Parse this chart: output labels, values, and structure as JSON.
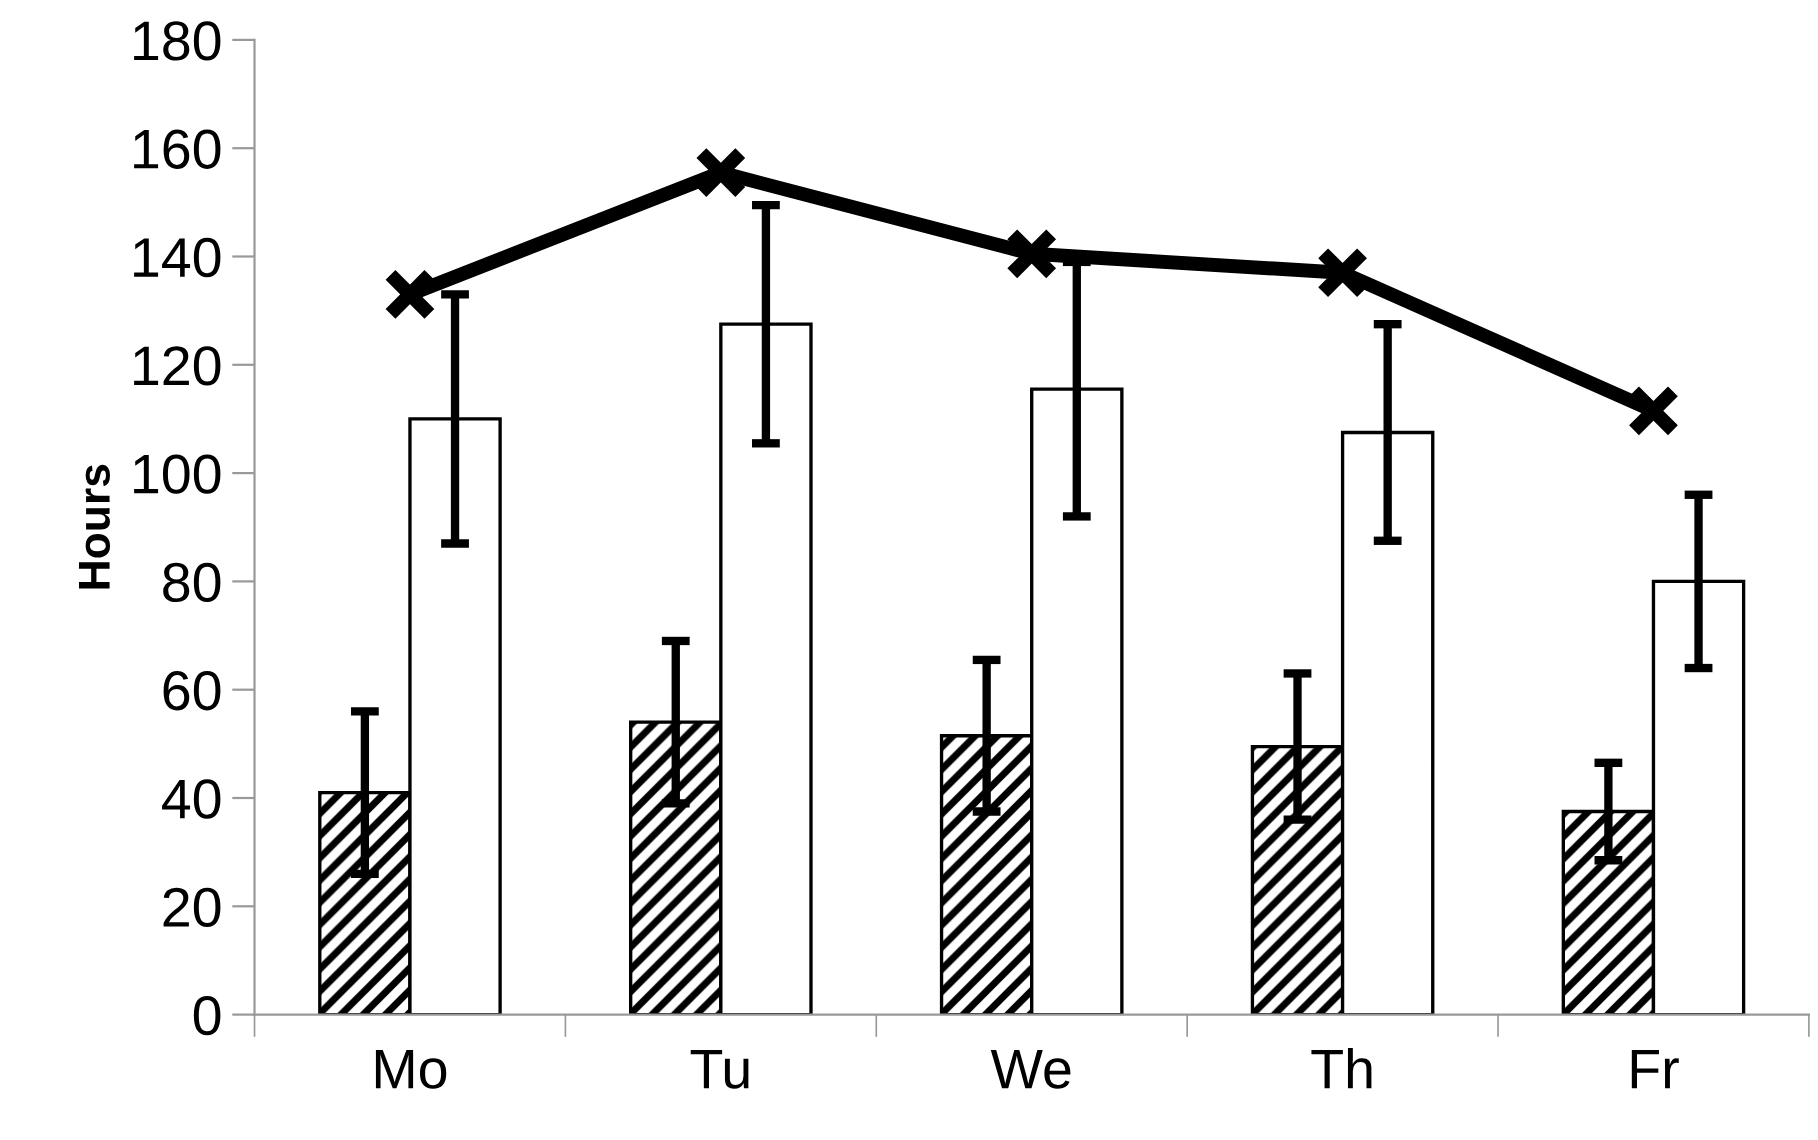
{
  "chart_data": {
    "type": "bar",
    "ylabel": "Hours",
    "categories": [
      "Mo",
      "Tu",
      "We",
      "Th",
      "Fr"
    ],
    "series": [
      {
        "color": "#000000",
        "values": [
          41,
          54,
          51.5,
          49.5,
          37.5
        ],
        "errors": [
          15,
          15,
          14,
          13.5,
          9
        ]
      },
      {
        "color": "#ffffff",
        "values": [
          110,
          127.5,
          115.5,
          107.5,
          80
        ],
        "errors": [
          23,
          22,
          23.5,
          20,
          16
        ]
      },
      {
        "type": "line",
        "color": "#000000",
        "values": [
          133,
          155.5,
          140.5,
          137,
          111.5
        ],
        "marker": "cross",
        "line_style": "solid"
      }
    ],
    "ylim": [
      0,
      180
    ],
    "yticks": [
      0,
      20,
      40,
      60,
      80,
      100,
      120,
      140,
      160,
      180
    ],
    "grid": false,
    "legend": false
  }
}
